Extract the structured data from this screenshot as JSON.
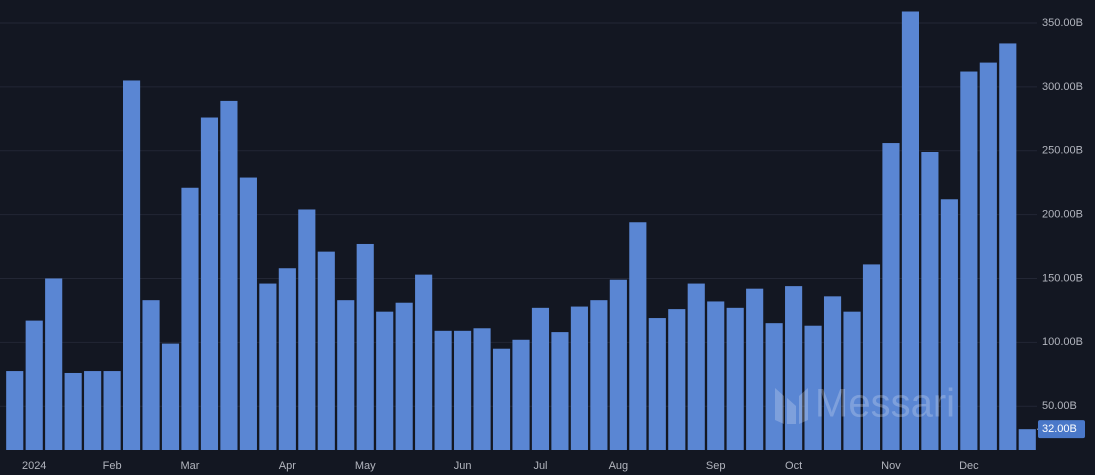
{
  "chart_data": {
    "type": "bar",
    "categories": [
      null,
      "2024",
      null,
      null,
      null,
      "Feb",
      null,
      null,
      null,
      "Mar",
      null,
      null,
      null,
      null,
      "Apr",
      null,
      null,
      null,
      "May",
      null,
      null,
      null,
      null,
      "Jun",
      null,
      null,
      null,
      "Jul",
      null,
      null,
      null,
      "Aug",
      null,
      null,
      null,
      null,
      "Sep",
      null,
      null,
      null,
      "Oct",
      null,
      null,
      null,
      null,
      "Nov",
      null,
      null,
      null,
      "Dec",
      null,
      null,
      null
    ],
    "values": [
      77.5,
      117,
      150,
      76,
      77.5,
      77.5,
      305,
      133,
      99,
      221,
      276,
      289,
      229,
      146,
      158,
      204,
      171,
      133,
      177,
      124,
      131,
      153,
      109,
      109,
      111,
      95,
      102,
      127,
      108,
      128,
      133,
      149,
      194,
      119,
      126,
      146,
      132,
      127,
      142,
      115,
      144,
      113,
      136,
      124,
      161,
      256,
      359,
      249,
      212,
      312,
      319,
      334,
      32
    ],
    "value_labels": [
      null,
      null,
      null,
      null,
      null,
      null,
      null,
      null,
      null,
      null,
      null,
      null,
      null,
      null,
      null,
      null,
      null,
      null,
      null,
      null,
      null,
      null,
      null,
      null,
      null,
      null,
      null,
      null,
      null,
      null,
      null,
      null,
      null,
      null,
      null,
      null,
      null,
      null,
      null,
      null,
      null,
      null,
      null,
      null,
      null,
      null,
      null,
      null,
      null,
      null,
      null,
      null,
      "32.00B"
    ],
    "color": "#5a86d3",
    "ylim": [
      15.7,
      368
    ],
    "yticks": [
      {
        "value": 50,
        "label": "50.00B"
      },
      {
        "value": 100,
        "label": "100.00B"
      },
      {
        "value": 150,
        "label": "150.00B"
      },
      {
        "value": 200,
        "label": "200.00B"
      },
      {
        "value": 250,
        "label": "250.00B"
      },
      {
        "value": 300,
        "label": "300.00B"
      },
      {
        "value": 350,
        "label": "350.00B"
      }
    ],
    "grid": true,
    "watermark": "Messari"
  }
}
